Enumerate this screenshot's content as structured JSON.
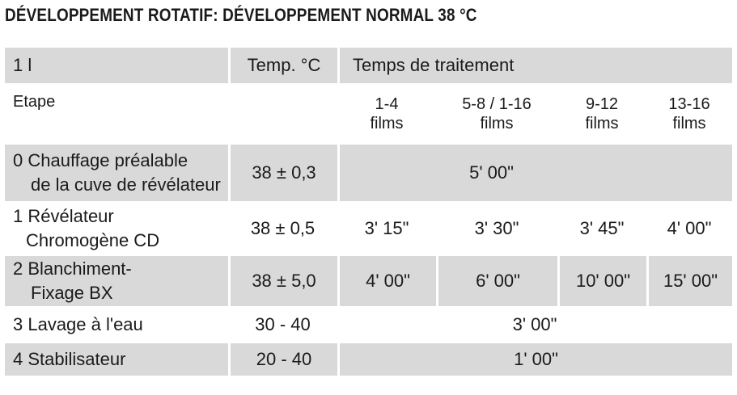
{
  "title": "DÉVELOPPEMENT ROTATIF: DÉVELOPPEMENT NORMAL 38 °C",
  "header": {
    "volume": "1 l",
    "temp": "Temp. °C",
    "time": "Temps de traitement"
  },
  "subheader": {
    "step": "Etape",
    "groups": [
      {
        "range": "1-4",
        "unit": "films"
      },
      {
        "range": "5-8 / 1-16",
        "unit": "films"
      },
      {
        "range": "9-12",
        "unit": "films"
      },
      {
        "range": "13-16",
        "unit": "films"
      }
    ]
  },
  "rows": [
    {
      "step_line1": "0 Chauffage préalable",
      "step_line2": "de la cuve de révélateur",
      "temp": "38 ± 0,3",
      "time_all": "5' 00\""
    },
    {
      "step_line1": "1 Révélateur",
      "step_line2": "Chromogène CD",
      "temp": "38 ± 0,5",
      "times": [
        "3' 15\"",
        "3' 30\"",
        "3' 45\"",
        "4' 00\""
      ]
    },
    {
      "step_line1": "2  Blanchiment-",
      "step_line2": "Fixage BX",
      "temp": "38 ± 5,0",
      "times": [
        "4' 00\"",
        "6' 00\"",
        "10' 00\"",
        "15' 00\""
      ]
    },
    {
      "step_line1": "3  Lavage à l'eau",
      "temp": "30 - 40",
      "time_all": "3' 00\""
    },
    {
      "step_line1": "4  Stabilisateur",
      "temp": "20 - 40",
      "time_all": "1' 00\""
    }
  ]
}
